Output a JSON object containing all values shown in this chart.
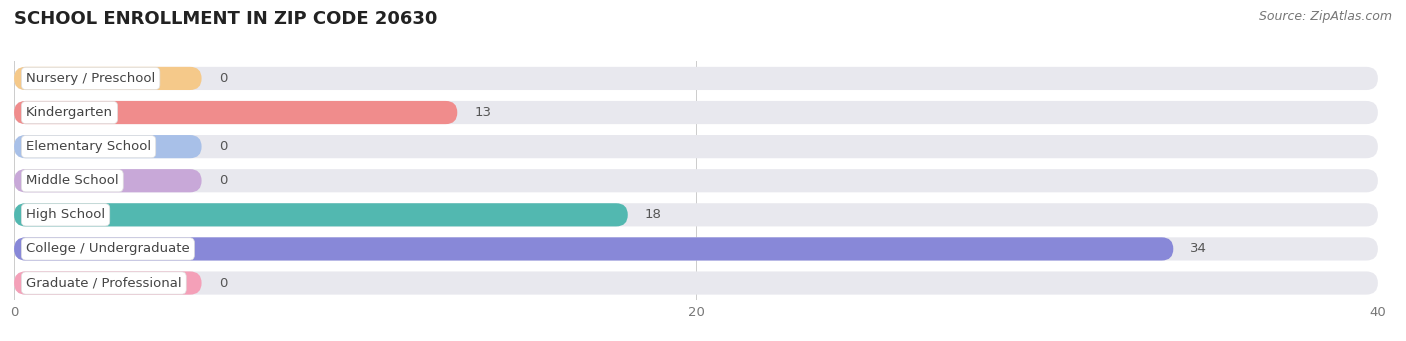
{
  "title": "SCHOOL ENROLLMENT IN ZIP CODE 20630",
  "source": "Source: ZipAtlas.com",
  "categories": [
    "Nursery / Preschool",
    "Kindergarten",
    "Elementary School",
    "Middle School",
    "High School",
    "College / Undergraduate",
    "Graduate / Professional"
  ],
  "values": [
    0,
    13,
    0,
    0,
    18,
    34,
    0
  ],
  "bar_colors": [
    "#f5c98a",
    "#f08c8c",
    "#a8c0e8",
    "#c8a8d8",
    "#52b8b0",
    "#8888d8",
    "#f4a0b8"
  ],
  "background_color": "#f0f0f4",
  "bar_background_color": "#e8e8ee",
  "xlim": [
    0,
    40
  ],
  "xticks": [
    0,
    20,
    40
  ],
  "title_fontsize": 13,
  "label_fontsize": 9.5,
  "value_fontsize": 9.5,
  "source_fontsize": 9
}
